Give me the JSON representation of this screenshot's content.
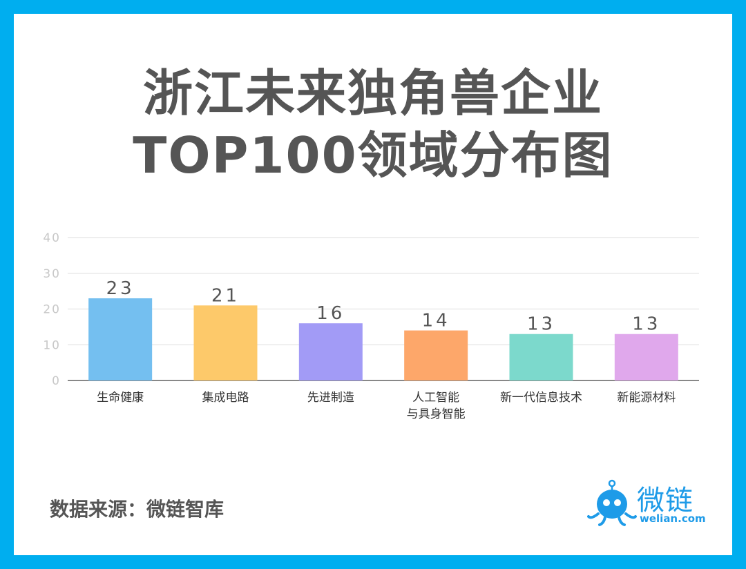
{
  "title": {
    "line1": "浙江未来独角兽企业",
    "line2": "TOP100领域分布图"
  },
  "chart_data": {
    "type": "bar",
    "categories": [
      [
        "生命健康"
      ],
      [
        "集成电路"
      ],
      [
        "先进制造"
      ],
      [
        "人工智能",
        "与具身智能"
      ],
      [
        "新一代信息技术"
      ],
      [
        "新能源材料"
      ]
    ],
    "values": [
      23,
      21,
      16,
      14,
      13,
      13
    ],
    "value_labels": [
      "23",
      "21",
      "16",
      "14",
      "13",
      "13"
    ],
    "colors": [
      "#74bff0",
      "#fdc96a",
      "#a29bf6",
      "#fda76a",
      "#7cd9cc",
      "#e0a8ec"
    ],
    "ylim": [
      0,
      40
    ],
    "yticks": [
      0,
      10,
      20,
      30,
      40
    ],
    "ytick_labels": [
      "0",
      "10",
      "20",
      "30",
      "40"
    ],
    "grid": true
  },
  "footer": {
    "source": "数据来源：微链智库"
  },
  "logo": {
    "word": "微链",
    "url": "welian.com",
    "color": "#1e9be8"
  }
}
